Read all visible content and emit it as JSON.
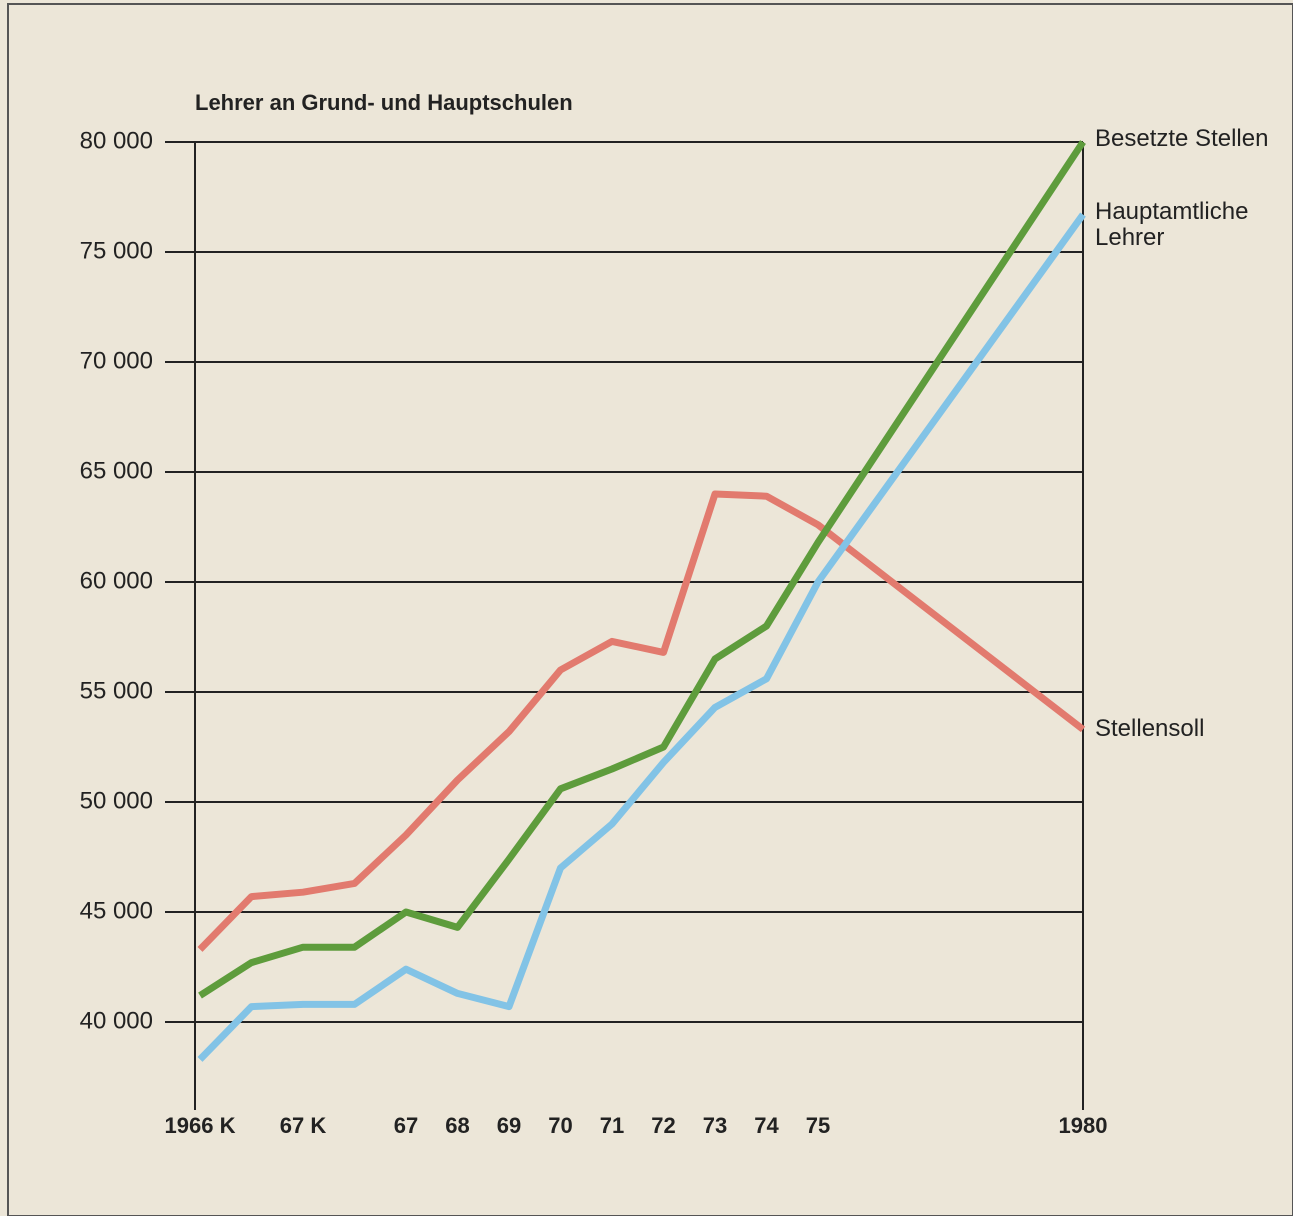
{
  "chart_data": {
    "type": "line",
    "title": "Lehrer an Grund- und Hauptschulen",
    "categories": [
      "1966 K",
      null,
      "67 K",
      null,
      "67",
      "68",
      "69",
      "70",
      "71",
      "72",
      "73",
      "74",
      "75",
      "1980"
    ],
    "series": [
      {
        "name": "Stellensoll",
        "color": "#e27a6e",
        "values": [
          43300,
          45700,
          45900,
          46300,
          48500,
          51000,
          53200,
          56000,
          57300,
          56800,
          64000,
          63900,
          62600,
          53300
        ]
      },
      {
        "name": "Besetzte Stellen",
        "color": "#5e9c3c",
        "values": [
          41200,
          42700,
          43400,
          43400,
          45000,
          44300,
          47400,
          50600,
          51500,
          52500,
          56500,
          58000,
          61800,
          80000
        ]
      },
      {
        "name": "Hauptamtliche Lehrer",
        "color": "#82c3e6",
        "values": [
          38300,
          40700,
          40800,
          40800,
          42400,
          41300,
          40700,
          47000,
          49000,
          51800,
          54300,
          55600,
          60000,
          76700
        ]
      }
    ],
    "ylim": [
      36000,
      80000
    ],
    "yticks": [
      {
        "value": 40000,
        "label": "40 000"
      },
      {
        "value": 45000,
        "label": "45 000"
      },
      {
        "value": 50000,
        "label": "50 000"
      },
      {
        "value": 55000,
        "label": "55 000"
      },
      {
        "value": 60000,
        "label": "60 000"
      },
      {
        "value": 65000,
        "label": "65 000"
      },
      {
        "value": 70000,
        "label": "70 000"
      },
      {
        "value": 75000,
        "label": "75 000"
      },
      {
        "value": 80000,
        "label": "80 000"
      }
    ],
    "grid": true
  }
}
